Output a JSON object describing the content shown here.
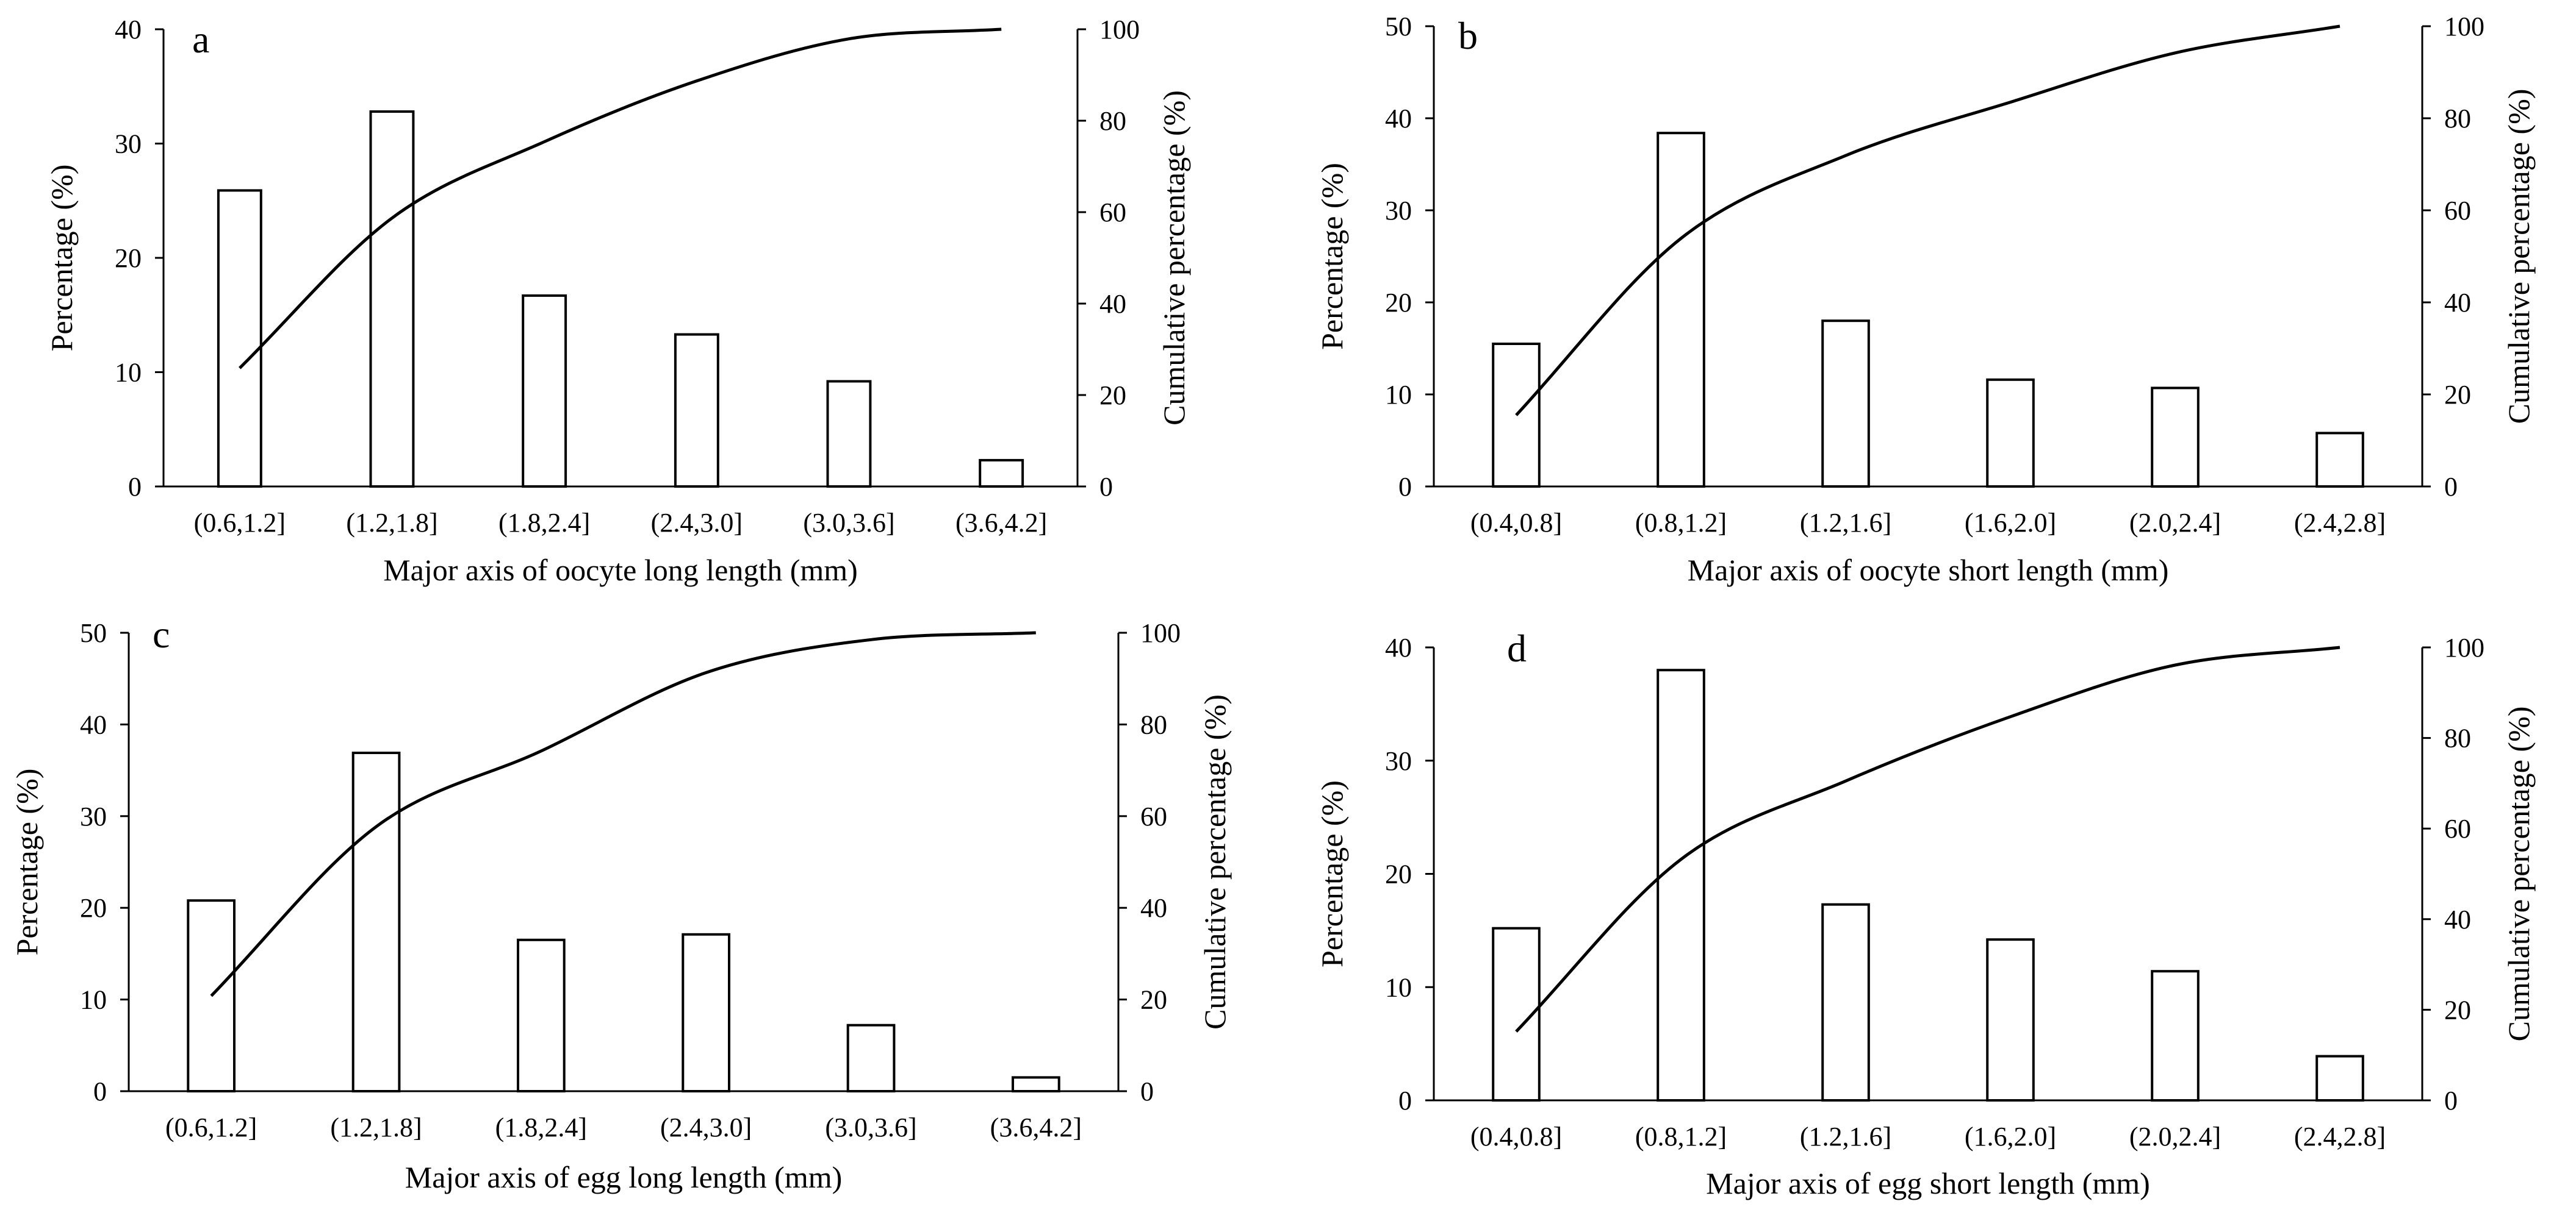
{
  "figure": {
    "panels": [
      {
        "id": "a",
        "letter": "a"
      },
      {
        "id": "b",
        "letter": "b"
      },
      {
        "id": "c",
        "letter": "c"
      },
      {
        "id": "d",
        "letter": "d"
      }
    ]
  },
  "chart_data": [
    {
      "panel": "a",
      "type": "bar",
      "title": "",
      "xlabel": "Major axis of oocyte long length (mm)",
      "ylabel": "Percentage (%)",
      "ylabel_right": "Cumulative percentage (%)",
      "categories": [
        "(0.6,1.2]",
        "(1.2,1.8]",
        "(1.8,2.4]",
        "(2.4,3.0]",
        "(3.0,3.6]",
        "(3.6,4.2]"
      ],
      "series": [
        {
          "type": "bar",
          "axis": "left",
          "values": [
            25.9,
            32.8,
            16.7,
            13.3,
            9.2,
            2.3
          ]
        },
        {
          "type": "line",
          "axis": "right",
          "values": [
            25.9,
            58.7,
            75.4,
            88.7,
            97.9,
            100
          ]
        }
      ],
      "ylim": [
        0,
        40
      ],
      "yticks": [
        0,
        10,
        20,
        30,
        40
      ],
      "ylim_right": [
        0,
        100
      ],
      "yticks_right": [
        0,
        20,
        40,
        60,
        80,
        100
      ],
      "grid": false
    },
    {
      "panel": "b",
      "type": "bar",
      "title": "",
      "xlabel": "Major axis of oocyte short length (mm)",
      "ylabel": "Percentage (%)",
      "ylabel_right": "Cumulative percentage (%)",
      "categories": [
        "(0.4,0.8]",
        "(0.8,1.2]",
        "(1.2,1.6]",
        "(1.6,2.0]",
        "(2.0,2.4]",
        "(2.4,2.8]"
      ],
      "series": [
        {
          "type": "bar",
          "axis": "left",
          "values": [
            15.5,
            38.4,
            18.0,
            11.6,
            10.7,
            5.8
          ]
        },
        {
          "type": "line",
          "axis": "right",
          "values": [
            15.5,
            53.9,
            71.9,
            83.5,
            94.2,
            100
          ]
        }
      ],
      "ylim": [
        0,
        50
      ],
      "yticks": [
        0,
        10,
        20,
        30,
        40,
        50
      ],
      "ylim_right": [
        0,
        100
      ],
      "yticks_right": [
        0,
        20,
        40,
        60,
        80,
        100
      ],
      "grid": false
    },
    {
      "panel": "c",
      "type": "bar",
      "title": "",
      "xlabel": "Major axis of egg long length (mm)",
      "ylabel": "Percentage (%)",
      "ylabel_right": "Cumulative percentage (%)",
      "categories": [
        "(0.6,1.2]",
        "(1.2,1.8]",
        "(1.8,2.4]",
        "(2.4,3.0]",
        "(3.0,3.6]",
        "(3.6,4.2]"
      ],
      "series": [
        {
          "type": "bar",
          "axis": "left",
          "values": [
            20.8,
            36.9,
            16.5,
            17.1,
            7.2,
            1.5
          ]
        },
        {
          "type": "line",
          "axis": "right",
          "values": [
            20.8,
            57.7,
            74.2,
            91.3,
            98.5,
            100
          ]
        }
      ],
      "ylim": [
        0,
        50
      ],
      "yticks": [
        0,
        10,
        20,
        30,
        40,
        50
      ],
      "ylim_right": [
        0,
        100
      ],
      "yticks_right": [
        0,
        20,
        40,
        60,
        80,
        100
      ],
      "grid": false
    },
    {
      "panel": "d",
      "type": "bar",
      "title": "",
      "xlabel": "Major axis of egg short length (mm)",
      "ylabel": "Percentage (%)",
      "ylabel_right": "Cumulative percentage (%)",
      "categories": [
        "(0.4,0.8]",
        "(0.8,1.2]",
        "(1.2,1.6]",
        "(1.6,2.0]",
        "(2.0,2.4]",
        "(2.4,2.8]"
      ],
      "series": [
        {
          "type": "bar",
          "axis": "left",
          "values": [
            15.2,
            38.0,
            17.3,
            14.2,
            11.4,
            3.9
          ]
        },
        {
          "type": "line",
          "axis": "right",
          "values": [
            15.2,
            53.2,
            70.5,
            84.7,
            96.1,
            100
          ]
        }
      ],
      "ylim": [
        0,
        40
      ],
      "yticks": [
        0,
        10,
        20,
        30,
        40
      ],
      "ylim_right": [
        0,
        100
      ],
      "yticks_right": [
        0,
        20,
        40,
        60,
        80,
        100
      ],
      "grid": false
    }
  ]
}
